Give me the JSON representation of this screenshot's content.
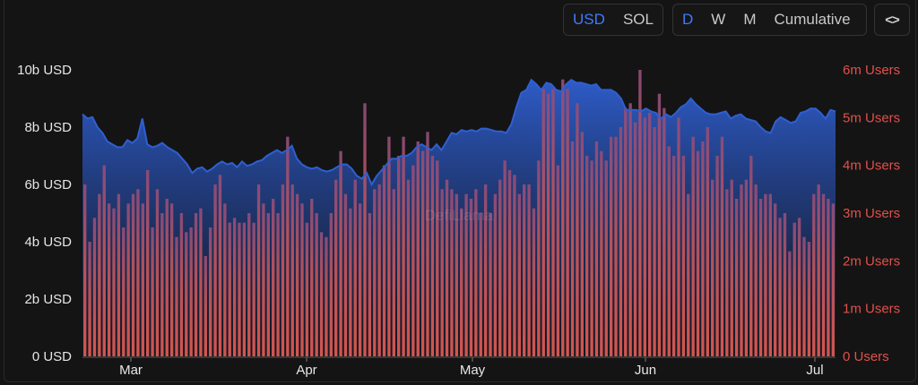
{
  "controls": {
    "currency": [
      {
        "label": "USD",
        "active": true
      },
      {
        "label": "SOL",
        "active": false
      }
    ],
    "interval": [
      {
        "label": "D",
        "active": true
      },
      {
        "label": "W",
        "active": false
      },
      {
        "label": "M",
        "active": false
      },
      {
        "label": "Cumulative",
        "active": false
      }
    ],
    "embed_label": "<>"
  },
  "watermark": "DefiLlama",
  "colors": {
    "area": "#2f5fd0",
    "bars": "#e0504b",
    "left_axis_text": "#e6e6e6",
    "right_axis_text": "#e0504b"
  },
  "chart_data": {
    "type": "bar",
    "x_tick_labels": [
      "Mar",
      "Apr",
      "May",
      "Jun",
      "Jul"
    ],
    "ylim_left": [
      0,
      10
    ],
    "ylim_right": [
      0,
      6
    ],
    "left_tick_labels": [
      "0 USD",
      "2b USD",
      "4b USD",
      "6b USD",
      "8b USD",
      "10b USD"
    ],
    "right_tick_labels": [
      "0 Users",
      "1m Users",
      "2m Users",
      "3m Users",
      "4m Users",
      "5m Users",
      "6m Users"
    ],
    "series": [
      {
        "type": "area",
        "axis": "left",
        "unit": "b USD",
        "values": [
          8.45,
          8.3,
          8.35,
          8.0,
          7.8,
          7.5,
          7.4,
          7.3,
          7.3,
          7.55,
          7.45,
          7.6,
          8.3,
          7.4,
          7.3,
          7.35,
          7.45,
          7.3,
          7.2,
          7.1,
          6.9,
          6.7,
          6.4,
          6.55,
          6.6,
          6.45,
          6.55,
          6.7,
          6.8,
          6.7,
          6.75,
          6.6,
          6.8,
          6.65,
          6.7,
          6.8,
          6.85,
          7.0,
          7.1,
          7.2,
          7.1,
          7.2,
          7.35,
          6.9,
          6.7,
          6.6,
          6.55,
          6.6,
          6.5,
          6.45,
          6.5,
          6.6,
          6.7,
          6.7,
          6.55,
          6.3,
          6.2,
          6.4,
          6.0,
          6.3,
          6.5,
          6.7,
          6.9,
          6.9,
          7.0,
          7.0,
          7.1,
          7.3,
          7.4,
          7.3,
          7.2,
          7.4,
          7.2,
          7.5,
          7.8,
          7.75,
          7.9,
          7.85,
          7.9,
          7.85,
          7.95,
          7.95,
          7.9,
          7.85,
          7.85,
          7.8,
          8.1,
          8.7,
          9.2,
          9.3,
          9.65,
          9.5,
          9.3,
          9.55,
          9.5,
          9.3,
          9.25,
          9.5,
          9.65,
          9.55,
          9.55,
          9.5,
          9.45,
          9.5,
          9.3,
          9.3,
          9.3,
          9.2,
          9.0,
          8.6,
          8.6,
          8.6,
          8.55,
          8.65,
          8.55,
          8.5,
          8.3,
          8.45,
          8.35,
          8.5,
          8.7,
          8.8,
          9.0,
          8.8,
          8.65,
          8.5,
          8.45,
          8.45,
          8.5,
          8.55,
          8.3,
          8.4,
          8.45,
          8.3,
          8.25,
          8.2,
          8.0,
          7.85,
          7.8,
          8.2,
          8.35,
          8.25,
          8.15,
          8.2,
          8.5,
          8.55,
          8.65,
          8.65,
          8.5,
          8.3,
          8.6,
          8.55
        ]
      },
      {
        "type": "bar",
        "axis": "right",
        "unit": "m Users",
        "values": [
          3.6,
          2.4,
          2.9,
          3.4,
          4.0,
          3.2,
          3.1,
          3.4,
          2.7,
          3.2,
          3.4,
          3.5,
          3.2,
          3.9,
          2.7,
          3.5,
          3.0,
          3.3,
          3.2,
          2.5,
          3.0,
          2.6,
          2.7,
          3.0,
          3.1,
          2.1,
          2.7,
          3.6,
          3.8,
          3.2,
          2.8,
          2.9,
          2.8,
          2.8,
          3.0,
          2.8,
          3.6,
          3.2,
          3.0,
          3.3,
          3.0,
          3.6,
          4.6,
          3.6,
          3.4,
          3.2,
          2.8,
          3.3,
          3.0,
          2.6,
          2.5,
          3.0,
          3.7,
          4.3,
          3.4,
          3.1,
          3.7,
          3.2,
          5.3,
          3.0,
          3.5,
          3.6,
          4.0,
          4.6,
          3.5,
          4.2,
          4.6,
          3.7,
          4.0,
          4.5,
          4.3,
          4.7,
          4.2,
          4.1,
          3.5,
          3.7,
          3.5,
          3.4,
          3.1,
          3.4,
          3.3,
          3.5,
          3.0,
          3.6,
          3.0,
          3.4,
          3.7,
          4.1,
          3.9,
          3.8,
          3.4,
          3.6,
          3.6,
          3.1,
          4.1,
          5.6,
          5.5,
          5.6,
          4.0,
          5.8,
          5.6,
          4.5,
          5.3,
          4.7,
          4.2,
          4.1,
          4.5,
          4.3,
          4.1,
          4.6,
          4.6,
          4.8,
          5.2,
          5.3,
          4.9,
          6.0,
          5.0,
          5.1,
          4.8,
          5.5,
          5.2,
          4.4,
          4.2,
          5.0,
          4.2,
          3.4,
          4.6,
          4.3,
          4.5,
          4.8,
          3.7,
          4.2,
          4.6,
          3.5,
          3.7,
          3.3,
          3.6,
          3.7,
          4.2,
          3.6,
          3.3,
          3.4,
          3.4,
          3.2,
          2.9,
          3.0,
          2.2,
          2.8,
          2.9,
          2.5,
          2.4,
          3.4,
          3.6,
          3.4,
          3.3,
          3.2
        ]
      }
    ]
  }
}
